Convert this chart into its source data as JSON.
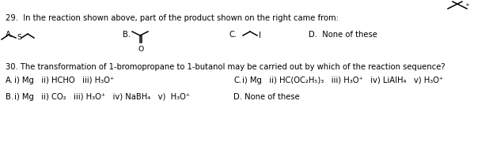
{
  "bg_color": "#ffffff",
  "text_color": "#000000",
  "figsize": [
    6.18,
    1.94
  ],
  "dpi": 100,
  "q29_text": "29.  In the reaction shown above, part of the product shown on the right came from:",
  "q30_text": "30. The transformation of 1-bromopropane to 1-butanol may be carried out by which of the reaction sequence?",
  "D29_text": "D.  None of these",
  "A30_text": "i) Mg   ii) HCHO   iii) H₃O⁺",
  "B30_text": "i) Mg   ii) CO₂   iii) H₃O⁺   iv) NaBH₄   v)  H₃O⁺",
  "C30_text": "i) Mg   ii) HC(OC₂H₅)₃   iii) H₃O⁺   iv) LiAlH₄   v) H₃O⁺",
  "D30_text": "D. None of these",
  "font_size": 7.2,
  "font_size_small": 6.5
}
